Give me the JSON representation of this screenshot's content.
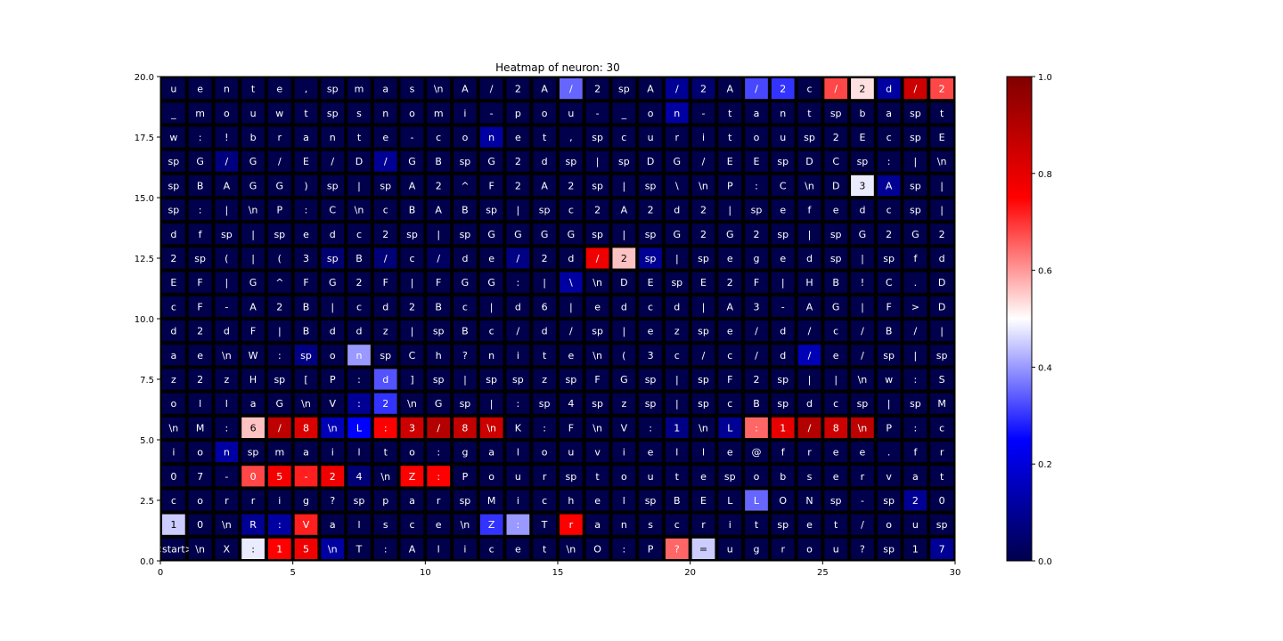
{
  "chart_data": {
    "type": "heatmap",
    "title": "Heatmap of neuron: 30",
    "xlabel": "",
    "ylabel": "",
    "xlim": [
      0,
      30
    ],
    "ylim": [
      0,
      20
    ],
    "x_ticks": [
      "0",
      "5",
      "10",
      "15",
      "20",
      "25",
      "30"
    ],
    "y_ticks": [
      "0.0",
      "2.5",
      "5.0",
      "7.5",
      "10.0",
      "12.5",
      "15.0",
      "17.5",
      "20.0"
    ],
    "colorbar": {
      "range": [
        0,
        1
      ],
      "ticks": [
        "0.0",
        "0.2",
        "0.4",
        "0.6",
        "0.8",
        "1.0"
      ],
      "colormap": "seismic"
    },
    "grid": false,
    "cell_border_color": "#000000",
    "rows_top_to_bottom": [
      {
        "tokens": [
          "u",
          "e",
          "n",
          "t",
          "e",
          ",",
          "sp",
          "m",
          "a",
          "s",
          "\\n",
          "A",
          "/",
          "2",
          "A",
          "/",
          "2",
          "sp",
          "A",
          "/",
          "2",
          "A",
          "/",
          "2",
          "c",
          "/",
          "2",
          "d",
          "/",
          "2"
        ],
        "values": [
          0,
          0,
          0,
          0,
          0,
          0,
          0,
          0,
          0,
          0,
          0,
          0,
          0,
          0,
          0,
          0.35,
          0,
          0,
          0,
          0.1,
          0.05,
          0,
          0.32,
          0.3,
          0,
          0.68,
          0.53,
          0.12,
          0.85,
          0.68
        ]
      },
      {
        "tokens": [
          "_",
          "m",
          "o",
          "u",
          "w",
          "t",
          "sp",
          "s",
          "n",
          "o",
          "m",
          "i",
          "-",
          "p",
          "o",
          "u",
          "-",
          "_",
          "o",
          "n",
          "-",
          "t",
          "a",
          "n",
          "t",
          "sp",
          "b",
          "a",
          "sp",
          "t"
        ],
        "values": [
          0,
          0,
          0,
          0,
          0,
          0,
          0,
          0,
          0,
          0,
          0,
          0,
          0,
          0,
          0,
          0,
          0,
          0,
          0,
          0.12,
          0,
          0,
          0,
          0,
          0,
          0,
          0,
          0,
          0,
          0
        ]
      },
      {
        "tokens": [
          "w",
          ":",
          "!",
          "b",
          "r",
          "a",
          "n",
          "t",
          "e",
          "-",
          "c",
          "o",
          "n",
          "e",
          "t",
          ",",
          "sp",
          "c",
          "u",
          "r",
          "i",
          "t",
          "o",
          "u",
          "sp",
          "2",
          "E",
          "c",
          "sp",
          "E"
        ],
        "values": [
          0,
          0,
          0,
          0,
          0,
          0,
          0,
          0,
          0,
          0,
          0,
          0,
          0.12,
          0,
          0,
          0,
          0,
          0,
          0,
          0,
          0,
          0,
          0,
          0,
          0,
          0,
          0,
          0,
          0,
          0
        ]
      },
      {
        "tokens": [
          "sp",
          "G",
          "/",
          "G",
          "/",
          "E",
          "/",
          "D",
          "/",
          "G",
          "B",
          "sp",
          "G",
          "2",
          "d",
          "sp",
          "|",
          "sp",
          "D",
          "G",
          "/",
          "E",
          "E",
          "sp",
          "D",
          "C",
          "sp",
          ":",
          "|",
          "\\n"
        ],
        "values": [
          0,
          0,
          0.07,
          0,
          0,
          0,
          0,
          0,
          0.1,
          0,
          0,
          0,
          0,
          0,
          0,
          0,
          0,
          0,
          0,
          0,
          0,
          0,
          0,
          0,
          0,
          0,
          0,
          0,
          0,
          0
        ]
      },
      {
        "tokens": [
          "sp",
          "B",
          "A",
          "G",
          "G",
          ")",
          "sp",
          "|",
          "sp",
          "A",
          "2",
          "^",
          "F",
          "2",
          "A",
          "2",
          "sp",
          "|",
          "sp",
          "\\",
          "\\n",
          "P",
          ":",
          "C",
          "\\n",
          "D",
          "3",
          "A",
          "sp",
          "|"
        ],
        "values": [
          0,
          0,
          0,
          0,
          0,
          0,
          0,
          0,
          0,
          0,
          0,
          0,
          0,
          0,
          0,
          0,
          0,
          0,
          0,
          0,
          0,
          0,
          0,
          0,
          0,
          0,
          0.48,
          0.1,
          0,
          0
        ]
      },
      {
        "tokens": [
          "sp",
          ":",
          "|",
          "\\n",
          "P",
          ":",
          "C",
          "\\n",
          "c",
          "B",
          "A",
          "B",
          "sp",
          "|",
          "sp",
          "c",
          "2",
          "A",
          "2",
          "d",
          "2",
          "|",
          "sp",
          "e",
          "f",
          "e",
          "d",
          "c",
          "sp",
          "|"
        ],
        "values": [
          0,
          0,
          0,
          0,
          0,
          0,
          0,
          0,
          0,
          0,
          0,
          0,
          0,
          0,
          0,
          0,
          0,
          0,
          0,
          0,
          0,
          0,
          0,
          0,
          0,
          0,
          0,
          0,
          0,
          0
        ]
      },
      {
        "tokens": [
          "d",
          "f",
          "sp",
          "|",
          "sp",
          "e",
          "d",
          "c",
          "2",
          "sp",
          "|",
          "sp",
          "G",
          "G",
          "G",
          "G",
          "sp",
          "|",
          "sp",
          "G",
          "2",
          "G",
          "2",
          "sp",
          "|",
          "sp",
          "G",
          "2",
          "G",
          "2"
        ],
        "values": [
          0,
          0,
          0,
          0,
          0,
          0,
          0,
          0,
          0,
          0,
          0,
          0,
          0,
          0,
          0,
          0,
          0,
          0,
          0,
          0,
          0,
          0,
          0,
          0,
          0,
          0,
          0,
          0,
          0,
          0
        ]
      },
      {
        "tokens": [
          "2",
          "sp",
          "(",
          "|",
          "(",
          "3",
          "sp",
          "B",
          "/",
          "c",
          "/",
          "d",
          "e",
          "/",
          "2",
          "d",
          "/",
          "2",
          "sp",
          "|",
          "sp",
          "e",
          "g",
          "e",
          "d",
          "sp",
          "|",
          "sp",
          "f",
          "d"
        ],
        "values": [
          0,
          0,
          0,
          0,
          0,
          0,
          0.05,
          0,
          0.06,
          0,
          0.03,
          0,
          0,
          0.08,
          0,
          0,
          0.78,
          0.56,
          0.1,
          0,
          0,
          0,
          0,
          0,
          0,
          0,
          0,
          0,
          0,
          0
        ]
      },
      {
        "tokens": [
          "E",
          "F",
          "|",
          "G",
          "^",
          "F",
          "G",
          "2",
          "F",
          "|",
          "F",
          "G",
          "G",
          ":",
          "|",
          "\\",
          "\\n",
          "D",
          "E",
          "sp",
          "E",
          "2",
          "F",
          "|",
          "H",
          "B",
          "!",
          "C",
          ".",
          "D"
        ],
        "values": [
          0,
          0,
          0,
          0,
          0,
          0,
          0,
          0,
          0,
          0,
          0,
          0,
          0,
          0,
          0,
          0.12,
          0,
          0,
          0,
          0,
          0,
          0,
          0,
          0,
          0,
          0,
          0,
          0,
          0,
          0
        ]
      },
      {
        "tokens": [
          "c",
          "F",
          "-",
          "A",
          "2",
          "B",
          "|",
          "c",
          "d",
          "2",
          "B",
          "c",
          "|",
          "d",
          "6",
          "|",
          "e",
          "d",
          "c",
          "d",
          "|",
          "A",
          "3",
          "-",
          "A",
          "G",
          "|",
          "F",
          ">",
          "D"
        ],
        "values": [
          0,
          0,
          0,
          0,
          0,
          0,
          0,
          0,
          0,
          0,
          0,
          0,
          0,
          0,
          0,
          0,
          0,
          0,
          0,
          0,
          0,
          0,
          0,
          0,
          0,
          0,
          0,
          0,
          0,
          0
        ]
      },
      {
        "tokens": [
          "d",
          "2",
          "d",
          "F",
          "|",
          "B",
          "d",
          "d",
          "z",
          "|",
          "sp",
          "B",
          "c",
          "/",
          "d",
          "/",
          "sp",
          "|",
          "e",
          "z",
          "sp",
          "e",
          "/",
          "d",
          "/",
          "c",
          "/",
          "B",
          "/",
          "|"
        ],
        "values": [
          0,
          0,
          0,
          0,
          0,
          0,
          0,
          0,
          0,
          0,
          0,
          0,
          0,
          0,
          0,
          0,
          0,
          0,
          0,
          0,
          0,
          0,
          0,
          0,
          0,
          0,
          0,
          0,
          0,
          0
        ]
      },
      {
        "tokens": [
          "a",
          "e",
          "\\n",
          "W",
          ":",
          "sp",
          "o",
          "n",
          "sp",
          "C",
          "h",
          "?",
          "n",
          "i",
          "t",
          "e",
          "\\n",
          "(",
          "3",
          "c",
          "/",
          "c",
          "/",
          "d",
          "/",
          "e",
          "/",
          "sp",
          "|",
          "sp"
        ],
        "values": [
          0,
          0,
          0,
          0,
          0,
          0.08,
          0,
          0.4,
          0,
          0,
          0,
          0,
          0,
          0,
          0,
          0,
          0,
          0,
          0,
          0,
          0,
          0,
          0,
          0,
          0.15,
          0,
          0,
          0,
          0,
          0
        ]
      },
      {
        "tokens": [
          "z",
          "2",
          "z",
          "H",
          "sp",
          "[",
          "P",
          ":",
          "d",
          "]",
          "sp",
          "|",
          "sp",
          "sp",
          "z",
          "sp",
          "F",
          "G",
          "sp",
          "|",
          "sp",
          "F",
          "2",
          "sp",
          "|",
          "|",
          "\\n",
          "w",
          ":",
          "S"
        ],
        "values": [
          0,
          0,
          0,
          0,
          0,
          0,
          0,
          0,
          0.33,
          0,
          0,
          0,
          0,
          0,
          0,
          0,
          0,
          0,
          0,
          0,
          0,
          0,
          0,
          0,
          0,
          0,
          0,
          0,
          0,
          0
        ]
      },
      {
        "tokens": [
          "o",
          "l",
          "l",
          "a",
          "G",
          "\\n",
          "V",
          ":",
          "2",
          "\\n",
          "G",
          "sp",
          "|",
          ":",
          "sp",
          "4",
          "sp",
          "z",
          "sp",
          "|",
          "sp",
          "c",
          "B",
          "sp",
          "d",
          "c",
          "sp",
          "|",
          "sp",
          "M"
        ],
        "values": [
          0,
          0,
          0,
          0,
          0,
          0,
          0,
          0.1,
          0.3,
          0,
          0,
          0,
          0,
          0,
          0,
          0,
          0,
          0,
          0,
          0,
          0,
          0,
          0,
          0,
          0,
          0,
          0,
          0,
          0,
          0
        ]
      },
      {
        "tokens": [
          "\\n",
          "M",
          ":",
          "6",
          "/",
          "8",
          "\\n",
          "L",
          ":",
          "3",
          "/",
          "8",
          "\\n",
          "K",
          ":",
          "F",
          "\\n",
          "V",
          ":",
          "1",
          "\\n",
          "L",
          ":",
          "1",
          "/",
          "8",
          "\\n",
          "P",
          ":",
          "c"
        ],
        "values": [
          0,
          0,
          0,
          0.56,
          0.88,
          0.82,
          0.15,
          0.25,
          0.75,
          0.85,
          0.9,
          0.87,
          0.85,
          0,
          0,
          0,
          0,
          0,
          0,
          0.08,
          0,
          0.1,
          0.65,
          0.8,
          0.9,
          0.85,
          0.88,
          0,
          0,
          0
        ]
      },
      {
        "tokens": [
          "i",
          "o",
          "n",
          "sp",
          "m",
          "a",
          "i",
          "l",
          "t",
          "o",
          ":",
          "g",
          "a",
          "l",
          "o",
          "u",
          "v",
          "i",
          "e",
          "l",
          "l",
          "e",
          "@",
          "f",
          "r",
          "e",
          "e",
          ".",
          "f",
          "r"
        ],
        "values": [
          0,
          0,
          0.12,
          0,
          0,
          0,
          0,
          0,
          0,
          0,
          0,
          0,
          0,
          0,
          0,
          0,
          0,
          0,
          0,
          0,
          0,
          0,
          0,
          0,
          0,
          0,
          0,
          0,
          0,
          0
        ]
      },
      {
        "tokens": [
          "0",
          "7",
          "-",
          "0",
          "5",
          "-",
          "2",
          "4",
          "\\n",
          "Z",
          ":",
          "P",
          "o",
          "u",
          "r",
          "sp",
          "t",
          "o",
          "u",
          "t",
          "e",
          "sp",
          "o",
          "b",
          "s",
          "e",
          "r",
          "v",
          "a",
          "t"
        ],
        "values": [
          0,
          0,
          0,
          0.68,
          0.77,
          0.72,
          0.78,
          0.06,
          0,
          0.75,
          0.75,
          0,
          0,
          0,
          0,
          0,
          0,
          0,
          0,
          0,
          0,
          0,
          0,
          0,
          0,
          0,
          0,
          0,
          0,
          0
        ]
      },
      {
        "tokens": [
          "c",
          "o",
          "r",
          "r",
          "i",
          "g",
          "?",
          "sp",
          "p",
          "a",
          "r",
          "sp",
          "M",
          "i",
          "c",
          "h",
          "e",
          "l",
          "sp",
          "B",
          "E",
          "L",
          "L",
          "O",
          "N",
          "sp",
          "-",
          "sp",
          "2",
          "0"
        ],
        "values": [
          0,
          0,
          0,
          0,
          0,
          0,
          0,
          0,
          0,
          0,
          0,
          0,
          0,
          0,
          0,
          0,
          0,
          0,
          0,
          0,
          0,
          0,
          0.35,
          0,
          0,
          0,
          0,
          0,
          0.1,
          0
        ]
      },
      {
        "tokens": [
          "1",
          "0",
          "\\n",
          "R",
          ":",
          "V",
          "a",
          "l",
          "s",
          "c",
          "e",
          "\\n",
          "Z",
          ":",
          "T",
          "r",
          "a",
          "n",
          "s",
          "c",
          "r",
          "i",
          "t",
          "sp",
          "e",
          "t",
          "/",
          "o",
          "u",
          "sp"
        ],
        "values": [
          0.45,
          0,
          0,
          0.1,
          0.12,
          0.72,
          0,
          0,
          0,
          0,
          0,
          0,
          0.3,
          0.4,
          0,
          0.75,
          0,
          0,
          0,
          0,
          0,
          0,
          0,
          0,
          0,
          0,
          0,
          0,
          0,
          0
        ]
      },
      {
        "tokens": [
          "<start>",
          "\\n",
          "X",
          ":",
          "1",
          "5",
          "\\n",
          "T",
          ":",
          "A",
          "l",
          "i",
          "c",
          "e",
          "t",
          "\\n",
          "O",
          ":",
          "P",
          "?",
          "=",
          "u",
          "g",
          "r",
          "o",
          "u",
          "?",
          "sp",
          "1",
          "7"
        ],
        "values": [
          0,
          0,
          0,
          0.48,
          0.75,
          0.78,
          0.12,
          0,
          0,
          0,
          0,
          0,
          0,
          0,
          0,
          0,
          0,
          0,
          0,
          0.65,
          0.45,
          0,
          0,
          0,
          0,
          0,
          0,
          0,
          0,
          0.1
        ]
      }
    ]
  }
}
